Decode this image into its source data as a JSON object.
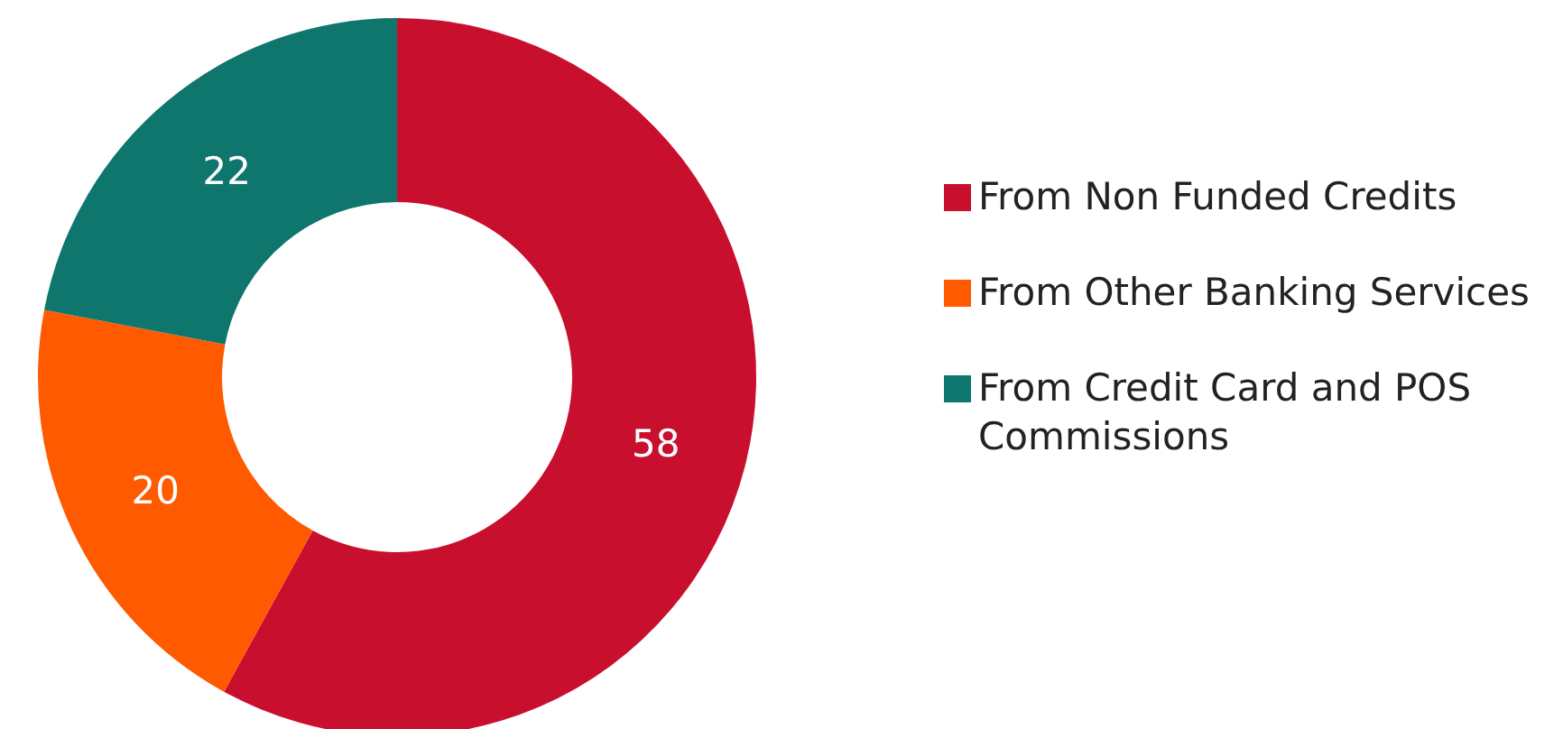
{
  "chart_data": {
    "type": "donut",
    "categories": [
      "From Non Funded Credits",
      "From Other Banking Services",
      "From Credit Card and POS Commissions"
    ],
    "values": [
      58,
      20,
      22
    ],
    "colors": [
      "#c8102e",
      "#ff5a00",
      "#0f766e"
    ],
    "data_labels": true,
    "legend": "right"
  }
}
